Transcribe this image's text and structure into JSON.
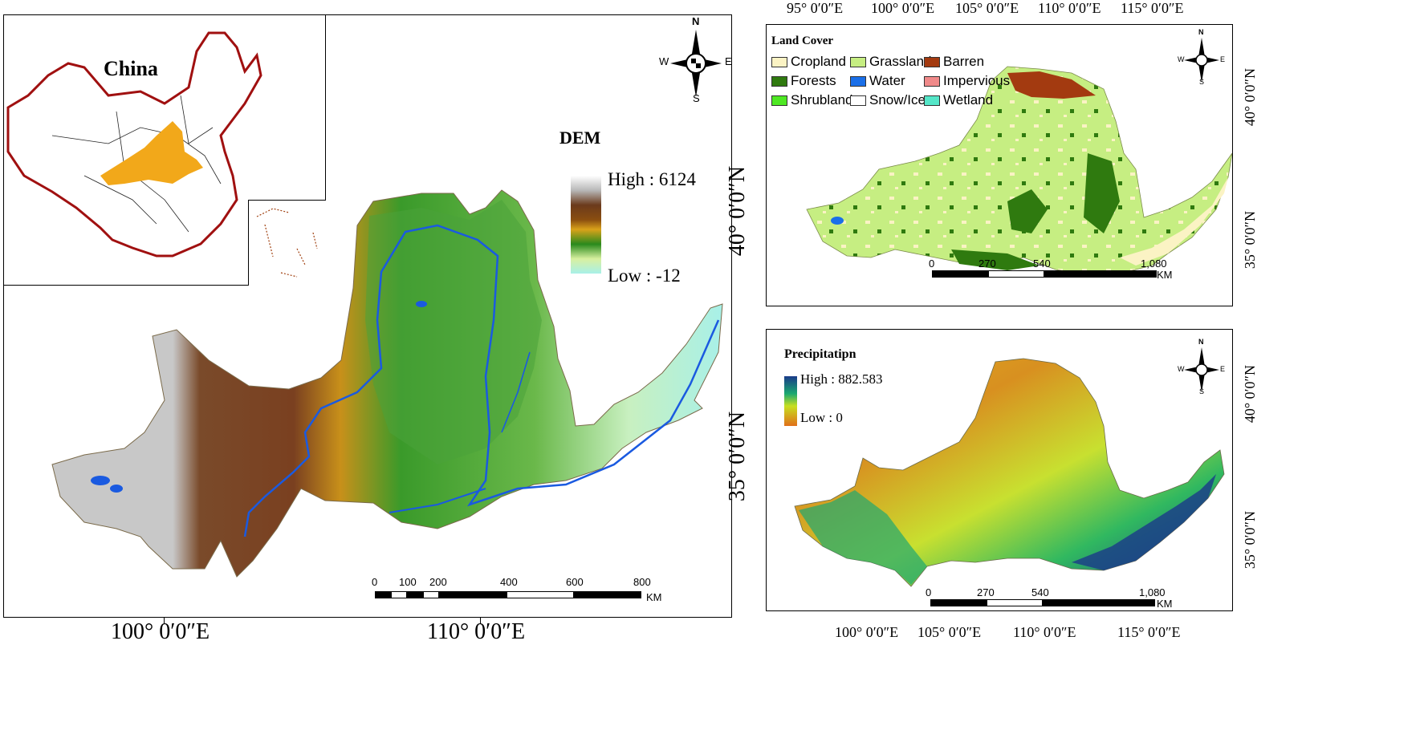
{
  "main_map": {
    "legend_title": "DEM",
    "legend_high": "High : 6124",
    "legend_low": "Low : -12",
    "lon_labels": [
      "100° 0′0″E",
      "110° 0′0″E"
    ],
    "lat_labels": [
      "40° 0′0″N",
      "35° 0′0″N"
    ],
    "scale_ticks": [
      "0",
      "100",
      "200",
      "400",
      "600",
      "800"
    ],
    "scale_unit": "KM",
    "compass": {
      "n": "N",
      "s": "S",
      "e": "E",
      "w": "W"
    },
    "inset_title": "China"
  },
  "landcover_map": {
    "legend_title": "Land Cover",
    "classes": [
      {
        "label": "Cropland",
        "color": "#fbf3c4"
      },
      {
        "label": "Grassland",
        "color": "#c6ee82"
      },
      {
        "label": "Barren",
        "color": "#a33a10"
      },
      {
        "label": "Forests",
        "color": "#2f7a0f"
      },
      {
        "label": "Water",
        "color": "#1a6fe8"
      },
      {
        "label": "Impervious",
        "color": "#f08a8a"
      },
      {
        "label": "Shrubland",
        "color": "#4ee823"
      },
      {
        "label": "Snow/Ice",
        "color": "#ffffff"
      },
      {
        "label": "Wetland",
        "color": "#55e6c8"
      }
    ],
    "lon_labels": [
      "95° 0′0″E",
      "100° 0′0″E",
      "105° 0′0″E",
      "110° 0′0″E",
      "115° 0′0″E"
    ],
    "lat_labels": [
      "40° 0′0″N",
      "35° 0′0″N"
    ],
    "scale_ticks": [
      "0",
      "270",
      "540",
      "1,080"
    ],
    "scale_unit": "KM",
    "compass": {
      "n": "N",
      "s": "S",
      "e": "E",
      "w": "W"
    }
  },
  "precip_map": {
    "legend_title": "Precipitatipn",
    "legend_high": "High : 882.583",
    "legend_low": "Low : 0",
    "lon_labels": [
      "100° 0′0″E",
      "105° 0′0″E",
      "110° 0′0″E",
      "115° 0′0″E"
    ],
    "lat_labels": [
      "40° 0′0″N",
      "35° 0′0″N"
    ],
    "scale_ticks": [
      "0",
      "270",
      "540",
      "1,080"
    ],
    "scale_unit": "KM",
    "compass": {
      "n": "N",
      "s": "S",
      "e": "E",
      "w": "W"
    }
  }
}
